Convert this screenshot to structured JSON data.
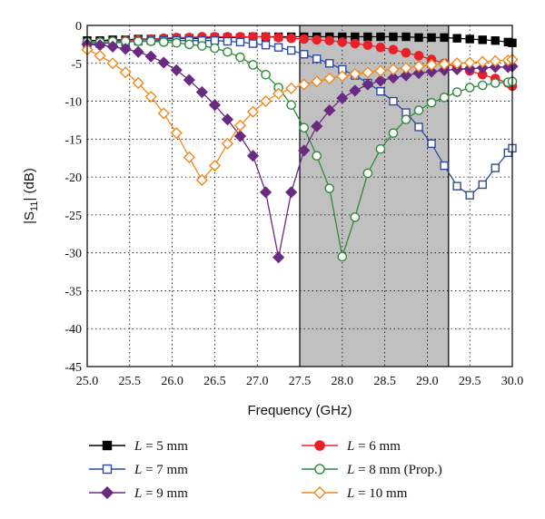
{
  "chart_data": {
    "type": "line",
    "xlabel": "Frequency (GHz)",
    "ylabel_main": "|S",
    "ylabel_sub": "11",
    "ylabel_tail": "| (dB)",
    "xlim": [
      25.0,
      30.0
    ],
    "ylim": [
      -45,
      0
    ],
    "xticks": [
      "25.0",
      "25.5",
      "26.0",
      "26.5",
      "27.0",
      "27.5",
      "28.0",
      "28.5",
      "29.0",
      "29.5",
      "30.0"
    ],
    "yticks": [
      "0",
      "-5",
      "-10",
      "-15",
      "-20",
      "-25",
      "-30",
      "-35",
      "-40",
      "-45"
    ],
    "grid": true,
    "shaded_band": [
      27.5,
      29.25
    ],
    "legend_position": "bottom",
    "series": [
      {
        "name_prefix": "L",
        "name_suffix": " = 5 mm",
        "color": "#000000",
        "marker": "square-filled",
        "x": [
          25.0,
          25.15,
          25.3,
          25.45,
          25.6,
          25.75,
          25.9,
          26.05,
          26.2,
          26.35,
          26.5,
          26.65,
          26.8,
          26.95,
          27.1,
          27.25,
          27.4,
          27.55,
          27.7,
          27.85,
          28.0,
          28.15,
          28.3,
          28.45,
          28.6,
          28.75,
          28.9,
          29.05,
          29.2,
          29.35,
          29.5,
          29.65,
          29.8,
          29.95,
          30.0
        ],
        "y": [
          -2.0,
          -2.0,
          -1.9,
          -1.9,
          -1.8,
          -1.8,
          -1.8,
          -1.7,
          -1.7,
          -1.7,
          -1.6,
          -1.6,
          -1.6,
          -1.5,
          -1.5,
          -1.5,
          -1.5,
          -1.5,
          -1.5,
          -1.5,
          -1.5,
          -1.5,
          -1.5,
          -1.5,
          -1.5,
          -1.5,
          -1.6,
          -1.6,
          -1.6,
          -1.7,
          -1.8,
          -1.9,
          -2.0,
          -2.2,
          -2.3
        ]
      },
      {
        "name_prefix": "L",
        "name_suffix": " = 6 mm",
        "color": "#e8202a",
        "marker": "circle-filled",
        "x": [
          25.0,
          25.15,
          25.3,
          25.45,
          25.6,
          25.75,
          25.9,
          26.05,
          26.2,
          26.35,
          26.5,
          26.65,
          26.8,
          26.95,
          27.1,
          27.25,
          27.4,
          27.55,
          27.7,
          27.85,
          28.0,
          28.15,
          28.3,
          28.45,
          28.6,
          28.75,
          28.9,
          29.05,
          29.2,
          29.35,
          29.5,
          29.65,
          29.8,
          29.95,
          30.0
        ],
        "y": [
          -2.3,
          -2.2,
          -2.1,
          -2.0,
          -1.9,
          -1.8,
          -1.7,
          -1.6,
          -1.6,
          -1.5,
          -1.5,
          -1.5,
          -1.5,
          -1.5,
          -1.5,
          -1.6,
          -1.7,
          -1.8,
          -1.9,
          -2.0,
          -2.2,
          -2.4,
          -2.6,
          -2.9,
          -3.2,
          -3.6,
          -4.0,
          -4.5,
          -5.0,
          -5.5,
          -6.0,
          -6.5,
          -7.0,
          -7.6,
          -8.0
        ]
      },
      {
        "name_prefix": "L",
        "name_suffix": " = 7 mm",
        "color": "#2e4a9e",
        "marker": "square-open",
        "x": [
          25.0,
          25.15,
          25.3,
          25.45,
          25.6,
          25.75,
          25.9,
          26.05,
          26.2,
          26.35,
          26.5,
          26.65,
          26.8,
          26.95,
          27.1,
          27.25,
          27.4,
          27.55,
          27.7,
          27.85,
          28.0,
          28.15,
          28.3,
          28.45,
          28.6,
          28.75,
          28.9,
          29.05,
          29.2,
          29.35,
          29.5,
          29.65,
          29.8,
          29.95,
          30.0
        ],
        "y": [
          -2.5,
          -2.4,
          -2.3,
          -2.2,
          -2.1,
          -2.0,
          -2.0,
          -2.0,
          -2.0,
          -2.0,
          -2.0,
          -2.1,
          -2.2,
          -2.4,
          -2.6,
          -2.9,
          -3.3,
          -3.8,
          -4.4,
          -5.0,
          -5.8,
          -6.6,
          -7.6,
          -8.7,
          -10.0,
          -11.5,
          -13.4,
          -15.6,
          -18.5,
          -21.2,
          -22.4,
          -21.0,
          -18.8,
          -16.8,
          -16.2
        ]
      },
      {
        "name_prefix": "L",
        "name_suffix": " = 8 mm (Prop.)",
        "color": "#2f8a3a",
        "marker": "circle-open",
        "x": [
          25.0,
          25.15,
          25.3,
          25.45,
          25.6,
          25.75,
          25.9,
          26.05,
          26.2,
          26.35,
          26.5,
          26.65,
          26.8,
          26.95,
          27.1,
          27.25,
          27.4,
          27.55,
          27.7,
          27.85,
          28.0,
          28.15,
          28.3,
          28.45,
          28.6,
          28.75,
          28.9,
          29.05,
          29.2,
          29.35,
          29.5,
          29.65,
          29.8,
          29.95,
          30.0
        ],
        "y": [
          -2.2,
          -2.2,
          -2.1,
          -2.1,
          -2.1,
          -2.1,
          -2.2,
          -2.3,
          -2.5,
          -2.7,
          -3.0,
          -3.5,
          -4.2,
          -5.2,
          -6.5,
          -8.2,
          -10.5,
          -13.5,
          -17.2,
          -21.5,
          -30.5,
          -25.3,
          -19.5,
          -16.3,
          -14.2,
          -12.4,
          -11.2,
          -10.2,
          -9.5,
          -8.8,
          -8.2,
          -7.9,
          -7.6,
          -7.5,
          -7.4
        ]
      },
      {
        "name_prefix": "L",
        "name_suffix": " = 9 mm",
        "color": "#6a2a82",
        "marker": "diamond-filled",
        "x": [
          25.0,
          25.15,
          25.3,
          25.45,
          25.6,
          25.75,
          25.9,
          26.05,
          26.2,
          26.35,
          26.5,
          26.65,
          26.8,
          26.95,
          27.1,
          27.25,
          27.4,
          27.55,
          27.7,
          27.85,
          28.0,
          28.15,
          28.3,
          28.45,
          28.6,
          28.75,
          28.9,
          29.05,
          29.2,
          29.35,
          29.5,
          29.65,
          29.8,
          29.95,
          30.0
        ],
        "y": [
          -2.5,
          -2.6,
          -2.8,
          -3.1,
          -3.5,
          -4.1,
          -4.9,
          -5.9,
          -7.2,
          -8.8,
          -10.5,
          -12.4,
          -14.6,
          -17.2,
          -22.0,
          -30.6,
          -22.0,
          -16.5,
          -13.3,
          -11.2,
          -9.6,
          -8.6,
          -7.8,
          -7.3,
          -6.9,
          -6.6,
          -6.3,
          -6.1,
          -5.9,
          -5.8,
          -5.7,
          -5.6,
          -5.5,
          -5.5,
          -5.4
        ]
      },
      {
        "name_prefix": "L",
        "name_suffix": " = 10 mm",
        "color": "#f08a1e",
        "marker": "diamond-open",
        "x": [
          25.0,
          25.15,
          25.3,
          25.45,
          25.6,
          25.75,
          25.9,
          26.05,
          26.2,
          26.35,
          26.5,
          26.65,
          26.8,
          26.95,
          27.1,
          27.25,
          27.4,
          27.55,
          27.7,
          27.85,
          28.0,
          28.15,
          28.3,
          28.45,
          28.6,
          28.75,
          28.9,
          29.05,
          29.2,
          29.35,
          29.5,
          29.65,
          29.8,
          29.95,
          30.0
        ],
        "y": [
          -3.2,
          -4.0,
          -5.0,
          -6.2,
          -7.6,
          -9.4,
          -11.6,
          -14.2,
          -17.4,
          -20.4,
          -18.5,
          -15.6,
          -13.2,
          -11.4,
          -10.0,
          -9.0,
          -8.3,
          -7.8,
          -7.4,
          -7.0,
          -6.7,
          -6.4,
          -6.2,
          -6.0,
          -5.8,
          -5.6,
          -5.4,
          -5.2,
          -5.1,
          -5.0,
          -4.9,
          -4.8,
          -4.7,
          -4.6,
          -4.5
        ]
      }
    ]
  }
}
